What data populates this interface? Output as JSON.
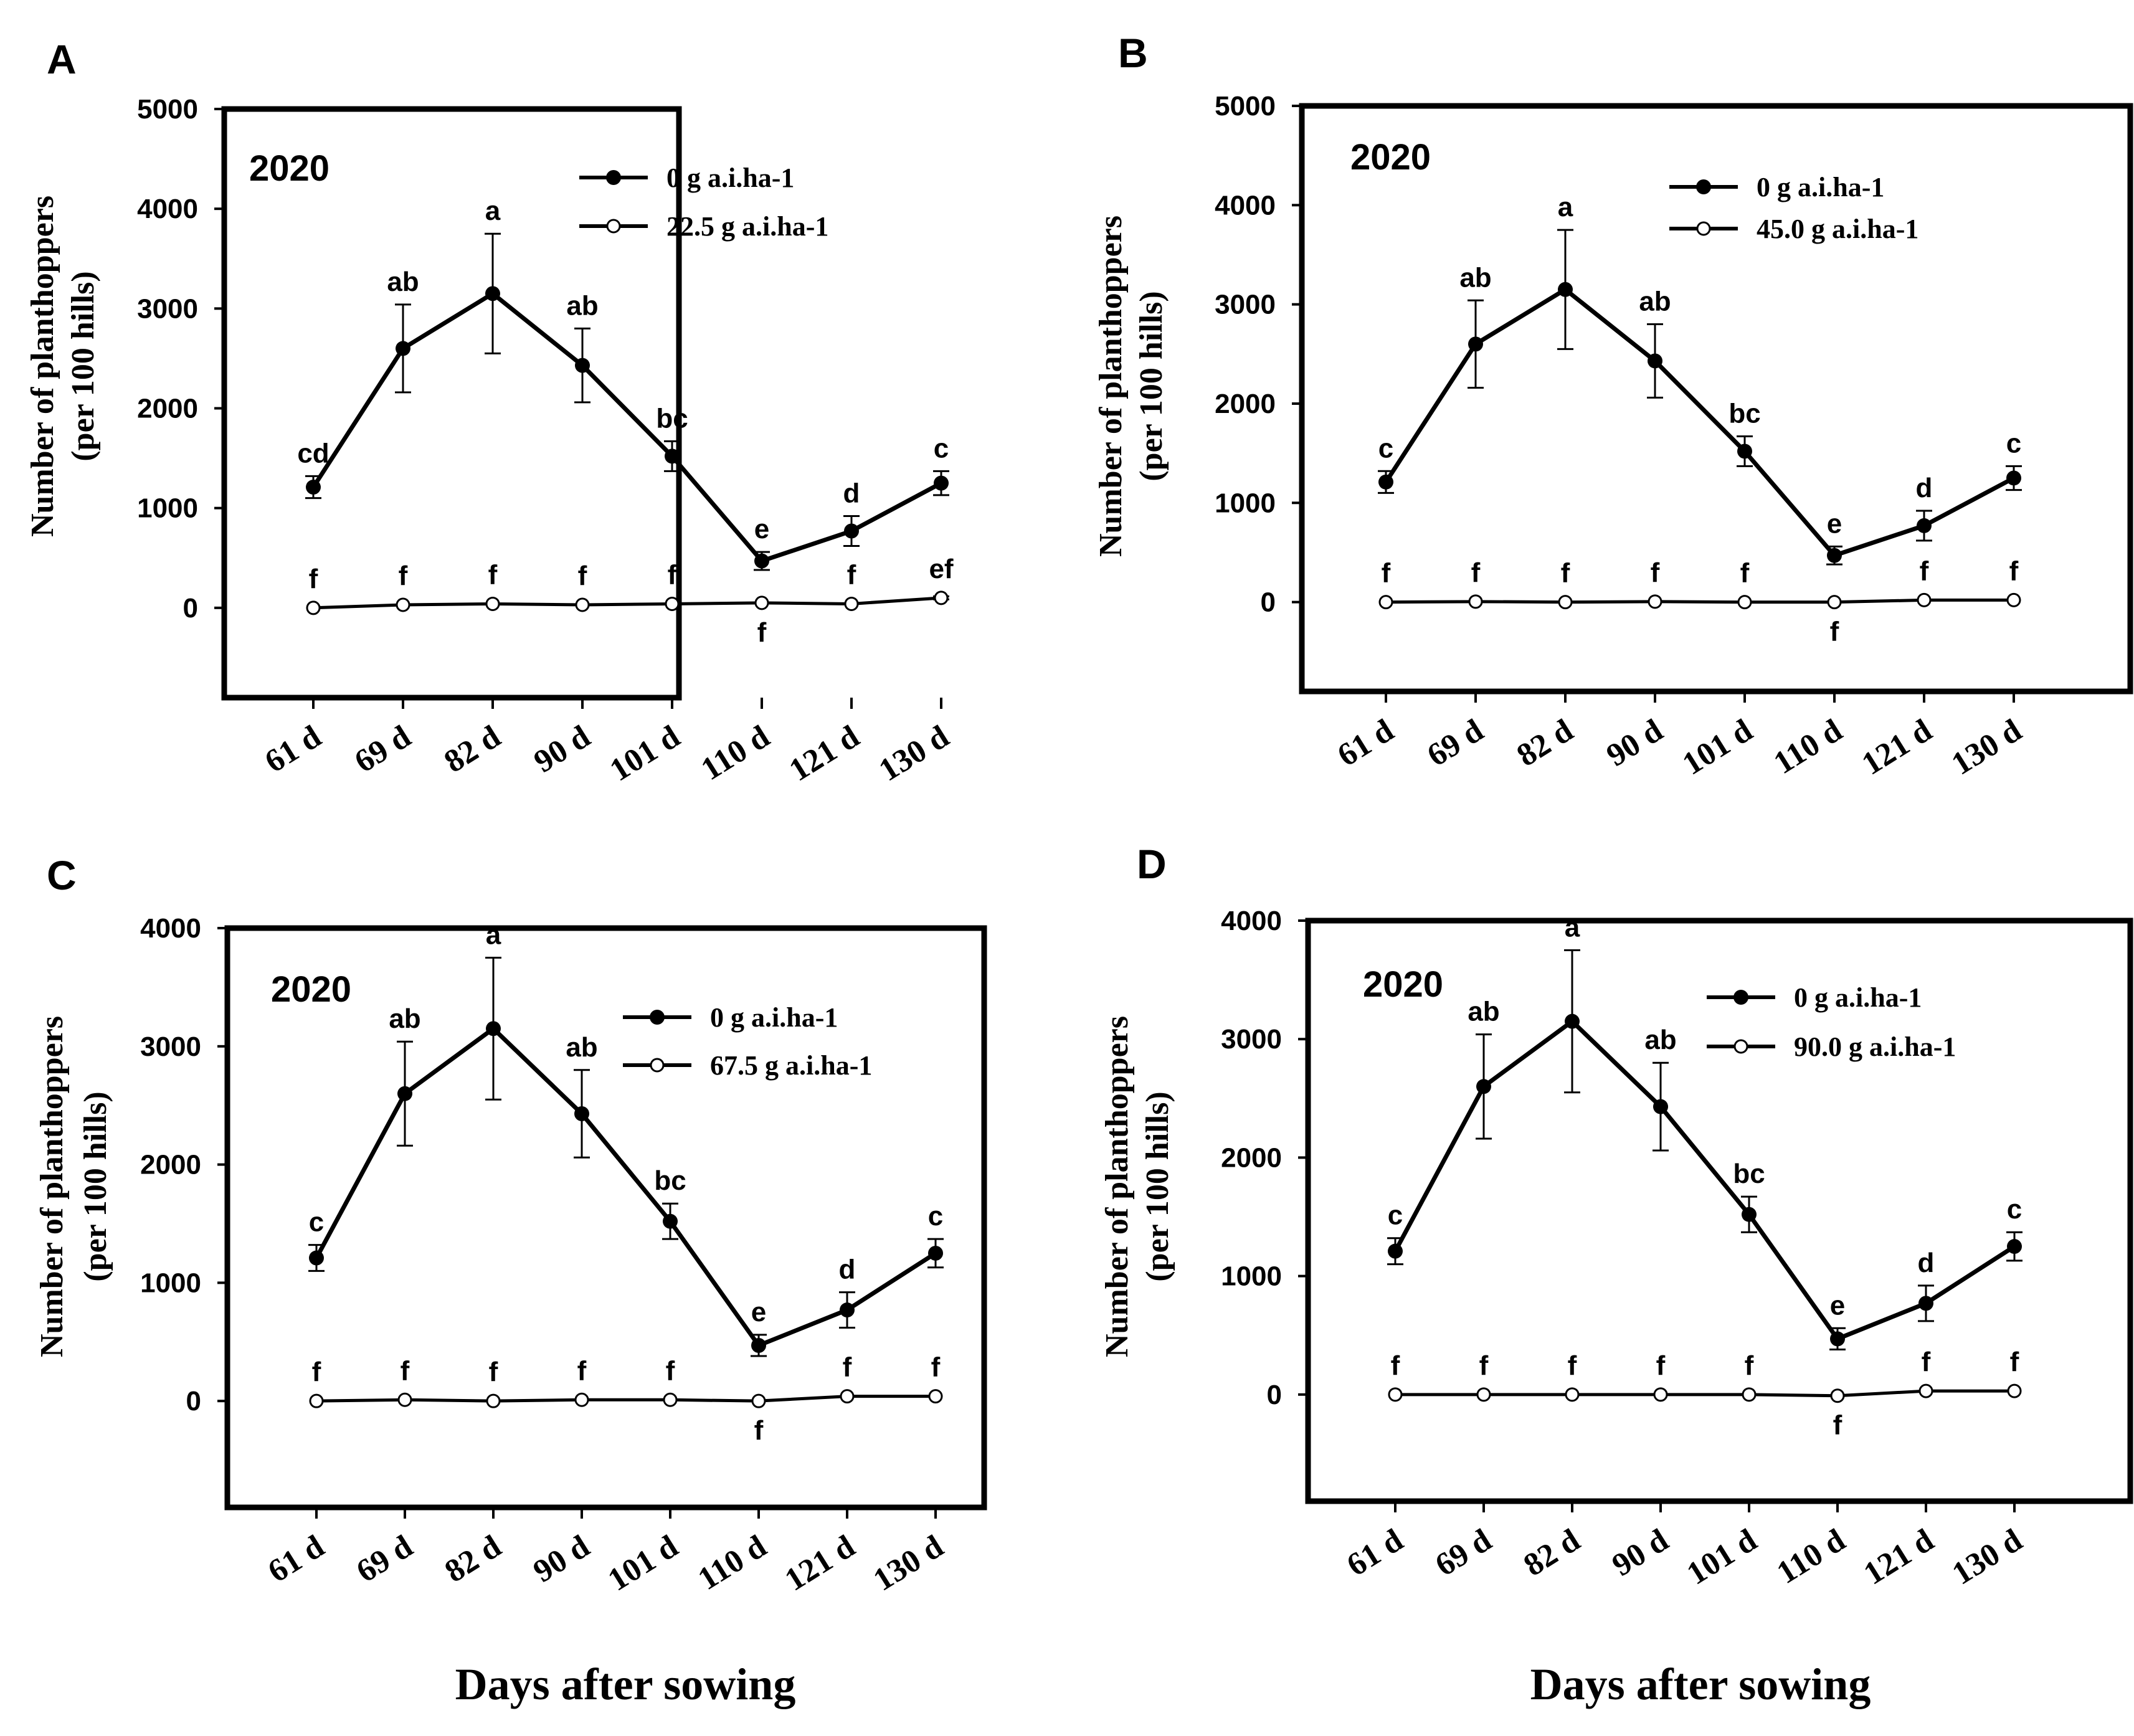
{
  "chart_data": [
    {
      "panel_letter": "A",
      "type": "line",
      "year_label": "2020",
      "categories": [
        "61 d",
        "69 d",
        "82 d",
        "90 d",
        "101 d",
        "110 d",
        "121 d",
        "130 d"
      ],
      "ylabel_line1": "Number of planthoppers",
      "ylabel_line2": "(per 100 hills)",
      "ylim": [
        -900,
        5000
      ],
      "yticks": [
        0,
        1000,
        2000,
        3000,
        4000,
        5000
      ],
      "series": [
        {
          "name": "0 g a.i.ha-1",
          "marker": "filled",
          "values": [
            1210,
            2600,
            3150,
            2430,
            1520,
            470,
            770,
            1250
          ],
          "errors": [
            110,
            440,
            600,
            370,
            150,
            90,
            150,
            120
          ],
          "letters": [
            "cd",
            "ab",
            "a",
            "ab",
            "bc",
            "e",
            "d",
            "c"
          ]
        },
        {
          "name": "22.5 g a.i.ha-1",
          "marker": "open",
          "values": [
            0,
            30,
            40,
            30,
            40,
            50,
            40,
            100
          ],
          "errors": [
            0,
            0,
            0,
            0,
            0,
            0,
            0,
            15
          ],
          "letters": [
            "f",
            "f",
            "f",
            "f",
            "f",
            "f",
            "f",
            "ef"
          ]
        }
      ]
    },
    {
      "panel_letter": "B",
      "type": "line",
      "year_label": "2020",
      "categories": [
        "61 d",
        "69 d",
        "82 d",
        "90 d",
        "101 d",
        "110 d",
        "121 d",
        "130 d"
      ],
      "ylabel_line1": "Number of planthoppers",
      "ylabel_line2": "(per 100 hills)",
      "ylim": [
        -900,
        5000
      ],
      "yticks": [
        0,
        1000,
        2000,
        3000,
        4000,
        5000
      ],
      "series": [
        {
          "name": "0 g a.i.ha-1",
          "marker": "filled",
          "values": [
            1210,
            2600,
            3150,
            2430,
            1520,
            470,
            770,
            1250
          ],
          "errors": [
            110,
            440,
            600,
            370,
            150,
            90,
            150,
            120
          ],
          "letters": [
            "c",
            "ab",
            "a",
            "ab",
            "bc",
            "e",
            "d",
            "c"
          ]
        },
        {
          "name": "45.0 g a.i.ha-1",
          "marker": "open",
          "values": [
            0,
            5,
            0,
            5,
            0,
            0,
            20,
            20
          ],
          "errors": [
            0,
            0,
            0,
            0,
            0,
            0,
            0,
            0
          ],
          "letters": [
            "f",
            "f",
            "f",
            "f",
            "f",
            "f",
            "f",
            "f"
          ]
        }
      ]
    },
    {
      "panel_letter": "C",
      "type": "line",
      "year_label": "2020",
      "categories": [
        "61 d",
        "69 d",
        "82 d",
        "90 d",
        "101 d",
        "110 d",
        "121 d",
        "130 d"
      ],
      "ylabel_line1": "Number of planthoppers",
      "ylabel_line2": "(per 100 hills)",
      "ylim": [
        -900,
        4000
      ],
      "yticks": [
        0,
        1000,
        2000,
        3000,
        4000
      ],
      "series": [
        {
          "name": "0 g a.i.ha-1",
          "marker": "filled",
          "values": [
            1210,
            2600,
            3150,
            2430,
            1520,
            470,
            770,
            1250
          ],
          "errors": [
            110,
            440,
            600,
            370,
            150,
            90,
            150,
            120
          ],
          "letters": [
            "c",
            "ab",
            "a",
            "ab",
            "bc",
            "e",
            "d",
            "c"
          ]
        },
        {
          "name": "67.5 g a.i.ha-1",
          "marker": "open",
          "values": [
            0,
            10,
            0,
            10,
            10,
            0,
            40,
            40
          ],
          "errors": [
            0,
            0,
            0,
            0,
            0,
            0,
            0,
            0
          ],
          "letters": [
            "f",
            "f",
            "f",
            "f",
            "f",
            "f",
            "f",
            "f"
          ]
        }
      ]
    },
    {
      "panel_letter": "D",
      "type": "line",
      "year_label": "2020",
      "categories": [
        "61 d",
        "69 d",
        "82 d",
        "90 d",
        "101 d",
        "110 d",
        "121 d",
        "130 d"
      ],
      "ylabel_line1": "Number of planthoppers",
      "ylabel_line2": "(per 100 hills)",
      "ylim": [
        -900,
        4000
      ],
      "yticks": [
        0,
        1000,
        2000,
        3000,
        4000
      ],
      "series": [
        {
          "name": "0 g a.i.ha-1",
          "marker": "filled",
          "values": [
            1210,
            2600,
            3150,
            2430,
            1520,
            470,
            770,
            1250
          ],
          "errors": [
            110,
            440,
            600,
            370,
            150,
            90,
            150,
            120
          ],
          "letters": [
            "c",
            "ab",
            "a",
            "ab",
            "bc",
            "e",
            "d",
            "c"
          ]
        },
        {
          "name": "90.0 g a.i.ha-1",
          "marker": "open",
          "values": [
            0,
            0,
            0,
            0,
            0,
            -10,
            30,
            30
          ],
          "errors": [
            0,
            0,
            0,
            0,
            0,
            0,
            0,
            0
          ],
          "letters": [
            "f",
            "f",
            "f",
            "f",
            "f",
            "f",
            "f",
            "f"
          ]
        }
      ]
    }
  ],
  "xlabel_left": "Days after sowing",
  "xlabel_right": "Days after sowing"
}
